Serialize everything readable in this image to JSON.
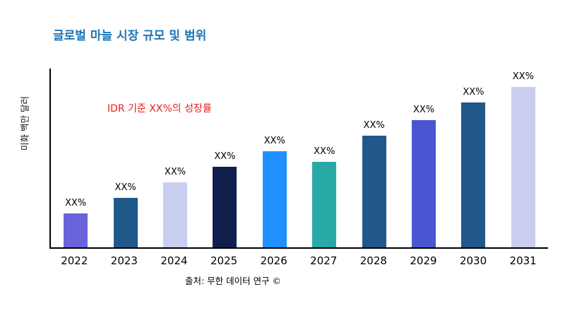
{
  "title": "글로벌 마늘 시장 규모 및 범위",
  "y_axis_label": "미화 백만 달러",
  "annotation": "IDR 기준 XX%의 성장률",
  "source": "출처: 무한 데이터 연구 ©",
  "colors": {
    "title": "#1C76B4",
    "annotation": "#EE1C1C",
    "axis": "#000000",
    "background": "#FFFFFF"
  },
  "chart_data": {
    "type": "bar",
    "title": "글로벌 마늘 시장 규모 및 범위",
    "ylabel": "미화 백만 달러",
    "xlabel": "",
    "categories": [
      "2022",
      "2023",
      "2024",
      "2025",
      "2026",
      "2027",
      "2028",
      "2029",
      "2030",
      "2031"
    ],
    "values": [
      22,
      32,
      42,
      52,
      62,
      55,
      72,
      82,
      93,
      103
    ],
    "value_note": "bar top labels are placeholders (XX%); values are relative height estimates, no numeric y-axis shown",
    "bar_labels": [
      "XX%",
      "XX%",
      "XX%",
      "XX%",
      "XX%",
      "XX%",
      "XX%",
      "XX%",
      "XX%",
      "XX%"
    ],
    "bar_colors": [
      "#6A63DC",
      "#21588A",
      "#C9CDEF",
      "#121F4D",
      "#1E90FF",
      "#29A8A8",
      "#21588A",
      "#4A55D2",
      "#21588A",
      "#C9CDEF"
    ],
    "ylim": [
      0,
      115
    ],
    "grid": false,
    "legend": "none",
    "annotation": "IDR 기준 XX%의 성장률"
  }
}
